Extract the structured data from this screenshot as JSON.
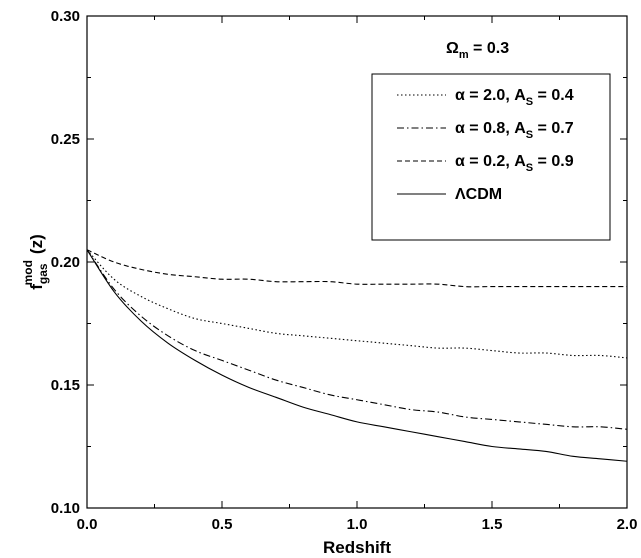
{
  "chart_data": {
    "type": "line",
    "title": "",
    "xlabel": "Redshift",
    "ylabel": {
      "main": "f",
      "sub": "gas",
      "sup": "mod",
      "tail": "(z)"
    },
    "xlim": [
      0.0,
      2.0
    ],
    "ylim": [
      0.1,
      0.3
    ],
    "x_ticks": [
      "0.0",
      "0.5",
      "1.0",
      "1.5",
      "2.0"
    ],
    "y_ticks": [
      "0.10",
      "0.15",
      "0.20",
      "0.25",
      "0.30"
    ],
    "grid": false,
    "annotation": {
      "main": "Ω",
      "sub": "m",
      "tail": " = 0.3"
    },
    "legend_position": "top-right",
    "x": [
      0.0,
      0.1,
      0.2,
      0.3,
      0.4,
      0.5,
      0.6,
      0.7,
      0.8,
      0.9,
      1.0,
      1.1,
      1.2,
      1.3,
      1.4,
      1.5,
      1.6,
      1.7,
      1.8,
      1.9,
      2.0
    ],
    "series": [
      {
        "label": {
          "pre": "α = 2.0, A",
          "sub": "S",
          "post": " = 0.4"
        },
        "dash": "dotted",
        "values": [
          0.205,
          0.193,
          0.186,
          0.181,
          0.177,
          0.175,
          0.173,
          0.171,
          0.17,
          0.169,
          0.168,
          0.167,
          0.166,
          0.165,
          0.165,
          0.164,
          0.163,
          0.163,
          0.162,
          0.162,
          0.161
        ]
      },
      {
        "label": {
          "pre": "α = 0.8, A",
          "sub": "S",
          "post": " = 0.7"
        },
        "dash": "dashdot",
        "values": [
          0.205,
          0.189,
          0.178,
          0.17,
          0.164,
          0.16,
          0.156,
          0.152,
          0.149,
          0.146,
          0.144,
          0.142,
          0.14,
          0.139,
          0.137,
          0.136,
          0.135,
          0.134,
          0.133,
          0.133,
          0.132
        ]
      },
      {
        "label": {
          "pre": "α = 0.2, A",
          "sub": "S",
          "post": " = 0.9"
        },
        "dash": "dashed",
        "values": [
          0.205,
          0.2,
          0.197,
          0.195,
          0.194,
          0.193,
          0.193,
          0.192,
          0.192,
          0.192,
          0.191,
          0.191,
          0.191,
          0.191,
          0.19,
          0.19,
          0.19,
          0.19,
          0.19,
          0.19,
          0.19
        ]
      },
      {
        "label": {
          "pre": "ΛCDM",
          "sub": "",
          "post": ""
        },
        "dash": "solid",
        "values": [
          0.205,
          0.188,
          0.176,
          0.167,
          0.16,
          0.154,
          0.149,
          0.145,
          0.141,
          0.138,
          0.135,
          0.133,
          0.131,
          0.129,
          0.127,
          0.125,
          0.124,
          0.123,
          0.121,
          0.12,
          0.119
        ]
      }
    ]
  }
}
